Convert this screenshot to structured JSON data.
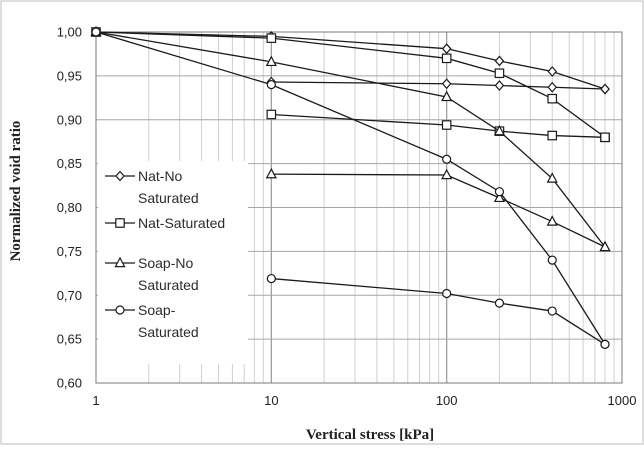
{
  "chart_data": {
    "type": "scatter",
    "title": "",
    "xlabel": "Vertical stress [kPa]",
    "ylabel": "Normalized void ratio",
    "x_scale": "log",
    "xlim": [
      1,
      1000
    ],
    "ylim": [
      0.6,
      1.0
    ],
    "x_ticks": [
      "1",
      "10",
      "100",
      "1000"
    ],
    "y_ticks": [
      "0,60",
      "0,65",
      "0,70",
      "0,75",
      "0,80",
      "0,85",
      "0,90",
      "0,95",
      "1,00"
    ],
    "grid": true,
    "legend_position": "left",
    "series": [
      {
        "name": "Nat-No Saturated",
        "legend_lines": [
          "Nat-No",
          "Saturated"
        ],
        "marker": "diamond",
        "segments": [
          {
            "x": [
              1,
              10,
              100,
              200,
              400,
              800
            ],
            "y": [
              1.0,
              0.995,
              0.981,
              0.967,
              0.955,
              0.935
            ]
          },
          {
            "x": [
              10,
              100,
              200,
              400,
              800
            ],
            "y": [
              0.943,
              0.941,
              0.939,
              0.937,
              0.935
            ]
          }
        ]
      },
      {
        "name": "Nat-Saturated",
        "legend_lines": [
          "Nat-Saturated"
        ],
        "marker": "square",
        "segments": [
          {
            "x": [
              1,
              10,
              100,
              200,
              400,
              800
            ],
            "y": [
              1.0,
              0.993,
              0.97,
              0.953,
              0.924,
              0.88
            ]
          },
          {
            "x": [
              10,
              100,
              200,
              400,
              800
            ],
            "y": [
              0.906,
              0.894,
              0.887,
              0.882,
              0.88
            ]
          }
        ]
      },
      {
        "name": "Soap-No Saturated",
        "legend_lines": [
          "Soap-No",
          "Saturated"
        ],
        "marker": "triangle",
        "segments": [
          {
            "x": [
              1,
              10,
              100,
              200,
              400,
              800
            ],
            "y": [
              1.0,
              0.966,
              0.926,
              0.887,
              0.833,
              0.755
            ]
          },
          {
            "x": [
              10,
              100,
              200,
              400,
              800
            ],
            "y": [
              0.838,
              0.837,
              0.811,
              0.784,
              0.755
            ]
          }
        ]
      },
      {
        "name": "Soap-Saturated",
        "legend_lines": [
          "Soap-",
          "Saturated"
        ],
        "marker": "circle",
        "segments": [
          {
            "x": [
              1,
              10,
              100,
              200,
              400,
              800
            ],
            "y": [
              1.0,
              0.94,
              0.855,
              0.818,
              0.74,
              0.644
            ]
          },
          {
            "x": [
              10,
              100,
              200,
              400,
              800
            ],
            "y": [
              0.719,
              0.702,
              0.691,
              0.682,
              0.644
            ]
          }
        ]
      }
    ]
  }
}
